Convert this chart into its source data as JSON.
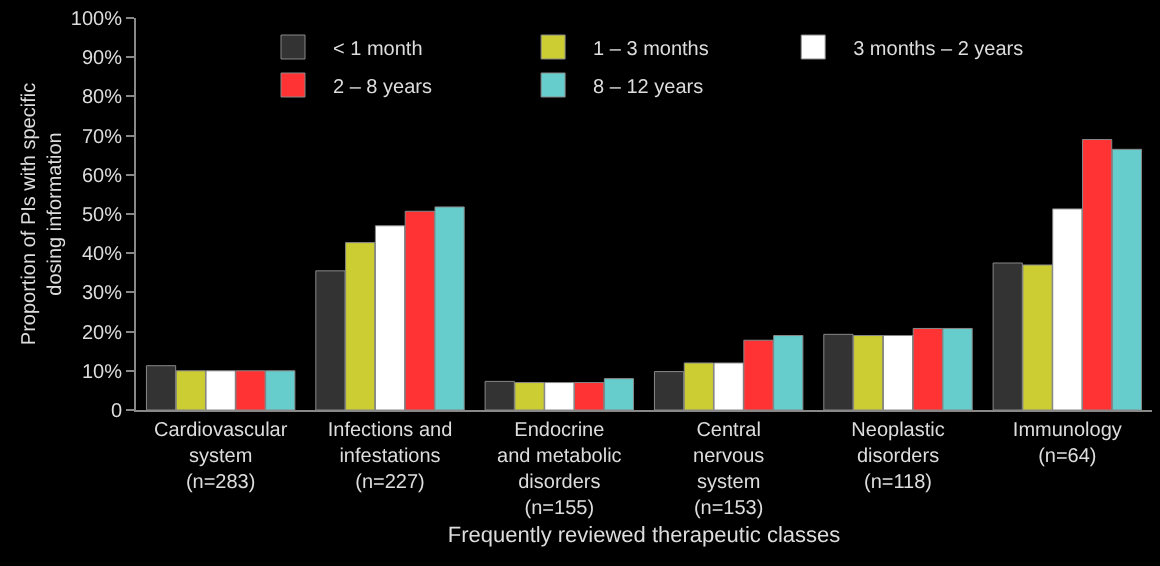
{
  "chart_data": {
    "type": "bar",
    "xlabel": "Frequently reviewed therapeutic classes",
    "ylabel": "Proportion of PIs with specific\ndosing information",
    "categories": [
      "Cardiovascular\nsystem\n(n=283)",
      "Infections and\ninfestations\n(n=227)",
      "Endocrine\nand metabolic\ndisorders\n(n=155)",
      "Central\nnervous\nsystem\n(n=153)",
      "Neoplastic\ndisorders\n(n=118)",
      "Immunology\n(n=64)"
    ],
    "series": [
      {
        "name": "< 1 month",
        "color": "#333333",
        "values": [
          11.3,
          35.5,
          7.3,
          9.8,
          19.3,
          37.5
        ]
      },
      {
        "name": "1 – 3 months",
        "color": "#cccc33",
        "values": [
          10,
          42.7,
          7,
          12,
          19,
          37
        ]
      },
      {
        "name": "3 months – 2 years",
        "color": "#ffffff",
        "values": [
          10,
          47,
          7,
          12,
          19,
          51.3
        ]
      },
      {
        "name": "2 – 8 years",
        "color": "#ff3333",
        "values": [
          10,
          50.7,
          7,
          17.8,
          20.8,
          69
        ]
      },
      {
        "name": "8 – 12 years",
        "color": "#66cccc",
        "values": [
          10,
          51.8,
          8,
          19,
          20.8,
          66.5
        ]
      }
    ],
    "ylim": [
      0,
      100
    ],
    "yticks": [
      {
        "value": 0,
        "label": "0"
      },
      {
        "value": 10,
        "label": "10%"
      },
      {
        "value": 20,
        "label": "20%"
      },
      {
        "value": 30,
        "label": "30%"
      },
      {
        "value": 40,
        "label": "40%"
      },
      {
        "value": 50,
        "label": "50%"
      },
      {
        "value": 60,
        "label": "60%"
      },
      {
        "value": 70,
        "label": "70%"
      },
      {
        "value": 80,
        "label": "80%"
      },
      {
        "value": 90,
        "label": "90%"
      },
      {
        "value": 100,
        "label": "100%"
      }
    ],
    "grid": false,
    "legend": "top"
  }
}
